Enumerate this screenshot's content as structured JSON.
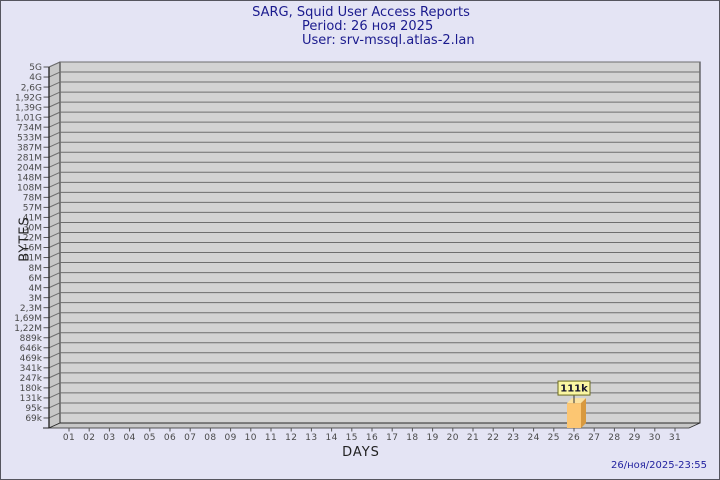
{
  "title": {
    "line1": "SARG, Squid User Access Reports",
    "line2": "Period: 26 ноя 2025",
    "line3": "User: srv-mssql.atlas-2.lan"
  },
  "footer": {
    "timestamp": "26/ноя/2025-23:55"
  },
  "colors": {
    "background": "#e4e4f4",
    "canvas_border": "#55555e",
    "title_text": "#1b1b8e",
    "timestamp_text": "#1f1f9e",
    "plot_plane": "#d3d3d3",
    "plot_wall": "#c7c7c7",
    "gridline": "#6e6e6e",
    "axis_line": "#2a2a2a",
    "tick_color": "#555555",
    "tick_label": "#4a4a4a",
    "bar_front": "#fcc672",
    "bar_side": "#d8993f",
    "bar_top": "#fbe2a0",
    "bar_label_bg": "#faf6a2",
    "bar_label_border": "#6b6b22",
    "bar_label_text": "#15152e"
  },
  "chart_data": {
    "type": "bar",
    "title": "SARG, Squid User Access Reports",
    "subtitle_period": "Period: 26 ноя 2025",
    "subtitle_user": "User: srv-mssql.atlas-2.lan",
    "xlabel": "DAYS",
    "ylabel": "BYTES",
    "y_scale": "log",
    "grid": true,
    "legend": false,
    "y_axis_top_value_bytes": 5000000000,
    "y_axis_bottom_value_bytes": 69000,
    "y_tick_labels": [
      "5G",
      "4G",
      "2,6G",
      "1,92G",
      "1,39G",
      "1,01G",
      "734M",
      "533M",
      "387M",
      "281M",
      "204M",
      "148M",
      "108M",
      "78M",
      "57M",
      "41M",
      "30M",
      "22M",
      "16M",
      "11M",
      "8M",
      "6M",
      "4M",
      "3M",
      "2,3M",
      "1,69M",
      "1,22M",
      "889k",
      "646k",
      "469k",
      "341k",
      "247k",
      "180k",
      "131k",
      "95k",
      "69k"
    ],
    "x_categories": [
      "01",
      "02",
      "03",
      "04",
      "05",
      "06",
      "07",
      "08",
      "09",
      "10",
      "11",
      "12",
      "13",
      "14",
      "15",
      "16",
      "17",
      "18",
      "19",
      "20",
      "21",
      "22",
      "23",
      "24",
      "25",
      "26",
      "27",
      "28",
      "29",
      "30",
      "31"
    ],
    "series": [
      {
        "name": "BYTES",
        "values": [
          0,
          0,
          0,
          0,
          0,
          0,
          0,
          0,
          0,
          0,
          0,
          0,
          0,
          0,
          0,
          0,
          0,
          0,
          0,
          0,
          0,
          0,
          0,
          0,
          0,
          111000,
          0,
          0,
          0,
          0,
          0
        ],
        "point_labels": {
          "26": "111k"
        }
      }
    ]
  }
}
